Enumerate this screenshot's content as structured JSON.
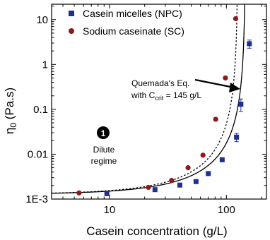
{
  "chart_data": {
    "type": "scatter",
    "title": "",
    "xlabel": "Casein concentration (g/L)",
    "ylabel": "η₀ (Pa.s)",
    "x_scale": "log",
    "y_scale": "log",
    "xlim": [
      3.2,
      220
    ],
    "ylim": [
      0.001,
      22
    ],
    "x_ticks": [
      10,
      100
    ],
    "x_tick_labels": [
      "10",
      "100"
    ],
    "y_ticks": [
      0.001,
      0.01,
      0.1,
      1,
      10
    ],
    "y_tick_labels": [
      "1E-3",
      "0.01",
      "0.1",
      "1",
      "10"
    ],
    "grid": false,
    "legend_position": "top-left",
    "series": [
      {
        "name": "Casein micelles (NPC)",
        "marker": "square",
        "color": "#1f2f8f",
        "x": [
          9.5,
          24.5,
          40,
          55,
          70,
          92,
          122,
          133,
          157
        ],
        "y": [
          0.00132,
          0.00162,
          0.00205,
          0.00245,
          0.0037,
          0.0075,
          0.024,
          0.13,
          2.9
        ],
        "y_err": [
          0,
          0,
          0,
          0,
          0,
          0,
          0.005,
          0.04,
          0.6
        ]
      },
      {
        "name": "Sodium caseinate (SC)",
        "marker": "circle",
        "color": "#8b1a1a",
        "x": [
          5.5,
          21.5,
          34,
          47,
          63,
          81,
          98,
          120
        ],
        "y": [
          0.00137,
          0.00182,
          0.0026,
          0.005,
          0.0095,
          0.06,
          0.5,
          10.5
        ]
      }
    ],
    "fits": [
      {
        "style": "solid",
        "color": "#000000",
        "eta0": 0.00128,
        "c_crit": 145,
        "exponent": 2.25
      },
      {
        "style": "dotted",
        "color": "#000000",
        "eta0": 0.00128,
        "c_crit": 125,
        "exponent": 2.25
      }
    ],
    "annotations": {
      "quemada_line1": "Quemada's Eq.",
      "quemada_prefix": "with C",
      "quemada_sub": "crit",
      "quemada_suffix": " = 145 g/L",
      "regime_number": "1",
      "regime_line1": "Dilute",
      "regime_line2": "regime"
    },
    "ylabel_eta": "η",
    "ylabel_sub": "0",
    "ylabel_unit": " (Pa.s)"
  }
}
